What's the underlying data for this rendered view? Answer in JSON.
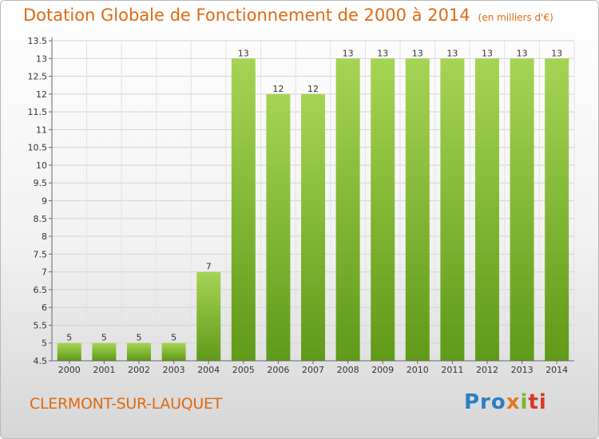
{
  "title": "Dotation Globale de Fonctionnement de 2000 à 2014",
  "unit_label": "(en milliers d'€)",
  "commune": "CLERMONT-SUR-LAUQUET",
  "logo": {
    "p1": "Pro",
    "p2": "x",
    "p3": "i",
    "p4": "ti"
  },
  "colors": {
    "bar_top": "#a6d454",
    "bar_bottom": "#5f9a18",
    "title": "#e06a10"
  },
  "chart_data": {
    "type": "bar",
    "categories": [
      "2000",
      "2001",
      "2002",
      "2003",
      "2004",
      "2005",
      "2006",
      "2007",
      "2008",
      "2009",
      "2010",
      "2011",
      "2012",
      "2013",
      "2014"
    ],
    "values": [
      5,
      5,
      5,
      5,
      7,
      13,
      12,
      12,
      13,
      13,
      13,
      13,
      13,
      13,
      13
    ],
    "data_labels": [
      "5",
      "5",
      "5",
      "5",
      "7",
      "13",
      "12",
      "12",
      "13",
      "13",
      "13",
      "13",
      "13",
      "13",
      "13"
    ],
    "title": "Dotation Globale de Fonctionnement de 2000 à 2014",
    "xlabel": "",
    "ylabel": "",
    "ylim": [
      4.5,
      13.5
    ],
    "yticks": [
      4.5,
      5,
      5.5,
      6,
      6.5,
      7,
      7.5,
      8,
      8.5,
      9,
      9.5,
      10,
      10.5,
      11,
      11.5,
      12,
      12.5,
      13,
      13.5
    ],
    "ytick_labels": [
      "4.5",
      "5",
      "5.5",
      "6",
      "6.5",
      "7",
      "7.5",
      "8",
      "8.5",
      "9",
      "9.5",
      "10",
      "10.5",
      "11",
      "11.5",
      "12",
      "12.5",
      "13",
      "13.5"
    ],
    "grid": true
  }
}
